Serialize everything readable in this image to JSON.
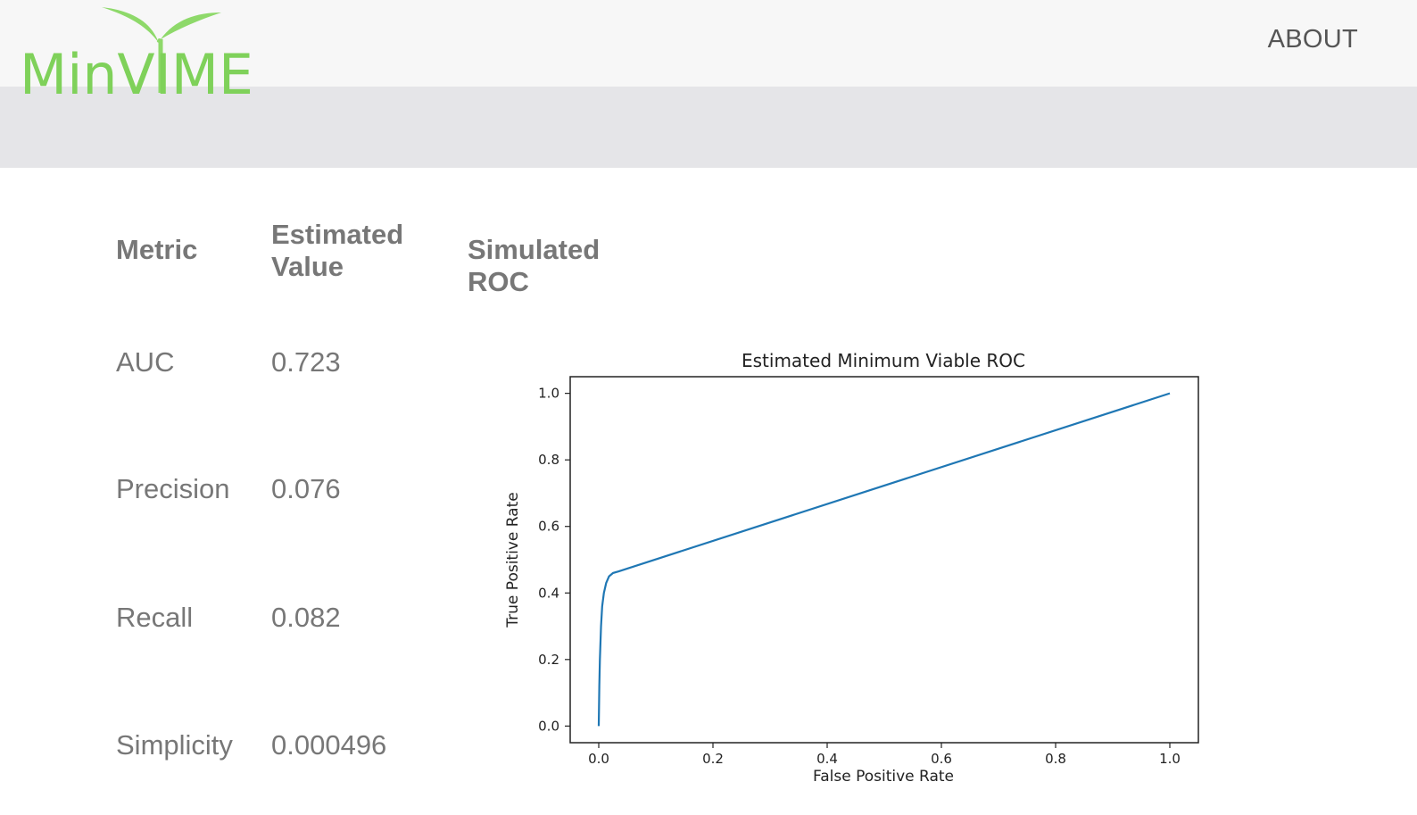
{
  "header": {
    "logo_text": "MinVIME",
    "about_label": "ABOUT",
    "brand_color": "#7fd15a"
  },
  "table": {
    "headers": {
      "metric": "Metric",
      "value_line1": "Estimated",
      "value_line2": "Value",
      "roc": "Simulated ROC"
    },
    "rows": [
      {
        "metric": "AUC",
        "value": "0.723"
      },
      {
        "metric": "Precision",
        "value": "0.076"
      },
      {
        "metric": "Recall",
        "value": "0.082"
      },
      {
        "metric": "Simplicity",
        "value": "0.000496"
      }
    ]
  },
  "chart_data": {
    "type": "line",
    "title": "Estimated Minimum Viable ROC",
    "xlabel": "False Positive Rate",
    "ylabel": "True Positive Rate",
    "xlim": [
      -0.05,
      1.05
    ],
    "ylim": [
      -0.05,
      1.05
    ],
    "x_ticks": [
      0.0,
      0.2,
      0.4,
      0.6,
      0.8,
      1.0
    ],
    "y_ticks": [
      0.0,
      0.2,
      0.4,
      0.6,
      0.8,
      1.0
    ],
    "x_tick_labels": [
      "0.0",
      "0.2",
      "0.4",
      "0.6",
      "0.8",
      "1.0"
    ],
    "y_tick_labels": [
      "0.0",
      "0.2",
      "0.4",
      "0.6",
      "0.8",
      "1.0"
    ],
    "grid": false,
    "series": [
      {
        "color": "#1f77b4",
        "x": [
          0.0,
          0.001,
          0.002,
          0.004,
          0.006,
          0.009,
          0.013,
          0.018,
          0.025,
          0.035,
          1.0
        ],
        "y": [
          0.0,
          0.12,
          0.2,
          0.3,
          0.36,
          0.4,
          0.43,
          0.45,
          0.46,
          0.465,
          1.0
        ]
      }
    ]
  }
}
